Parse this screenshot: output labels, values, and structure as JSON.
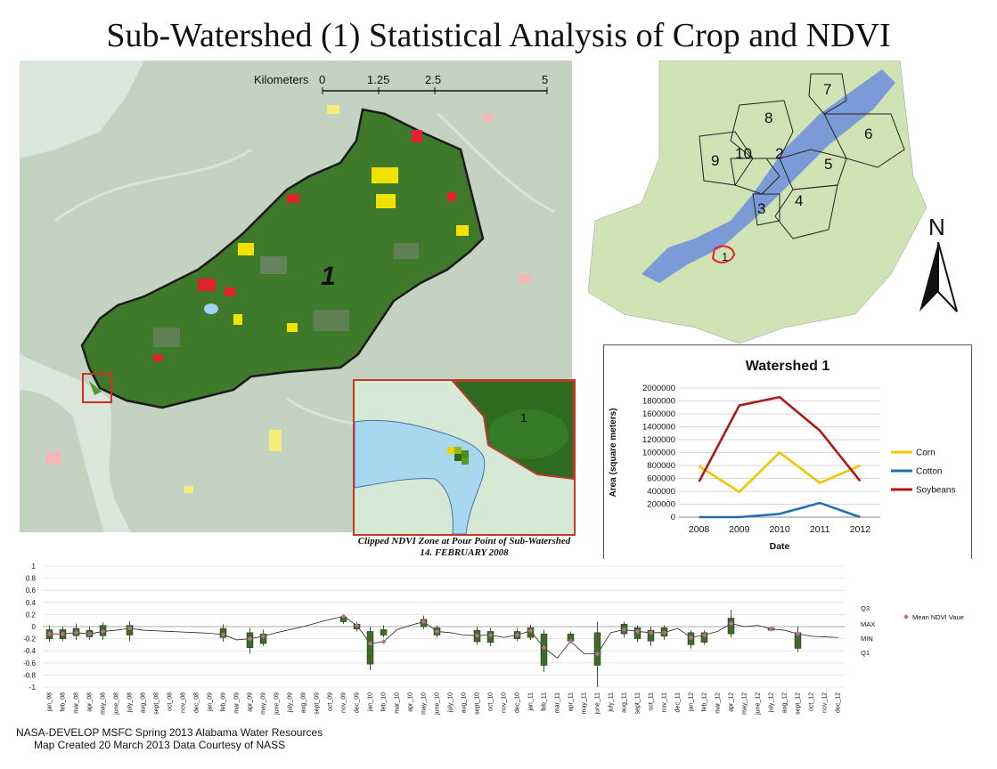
{
  "title": "Sub-Watershed (1) Statistical Analysis of Crop and NDVI",
  "scalebar": {
    "label": "Kilometers",
    "ticks": [
      "0",
      "1.25",
      "2.5",
      "5"
    ]
  },
  "main_map": {
    "watershed_label": "1"
  },
  "inset": {
    "label": "1"
  },
  "caption": {
    "line1": "Clipped NDVI Zone at Pour Point of Sub-Watershed",
    "line2": "14. FEBRUARY 2008"
  },
  "overview": {
    "labels": [
      "7",
      "8",
      "10",
      "2",
      "9",
      "6",
      "5",
      "4",
      "3",
      "1"
    ]
  },
  "north_arrow": {
    "label": "N"
  },
  "colors": {
    "corn": "#f2c500",
    "cotton": "#1f6fb4",
    "soybeans": "#b01818",
    "watershed": "#2f6a1e",
    "water": "#a9cfe6"
  },
  "chart_data": [
    {
      "type": "line",
      "title": "Watershed 1",
      "xlabel": "Date",
      "ylabel": "Area (square meters)",
      "x": [
        "2008",
        "2009",
        "2010",
        "2011",
        "2012"
      ],
      "ylim": [
        0,
        2000000
      ],
      "yticks": [
        "0",
        "200000",
        "400000",
        "600000",
        "800000",
        "1000000",
        "1200000",
        "1400000",
        "1600000",
        "1800000",
        "2000000"
      ],
      "grid": true,
      "legend": "right",
      "series": [
        {
          "name": "Corn",
          "color": "#f2c500",
          "values": [
            790000,
            390000,
            1000000,
            530000,
            800000
          ]
        },
        {
          "name": "Cotton",
          "color": "#1f6fb4",
          "values": [
            0,
            0,
            50000,
            220000,
            0
          ]
        },
        {
          "name": "Soybeans",
          "color": "#b01818",
          "values": [
            550000,
            1730000,
            1860000,
            1340000,
            560000
          ]
        }
      ]
    },
    {
      "type": "box",
      "ylim": [
        -1,
        1
      ],
      "yticks": [
        "1",
        "0.8",
        "0.6",
        "0.4",
        "0.2",
        "0",
        "-0.2",
        "-0.4",
        "-0.6",
        "-0.8",
        "-1"
      ],
      "legend": "right",
      "legend_labels": [
        "Q3",
        "MAX",
        "MIN",
        "Q1"
      ],
      "mean_label": "Mean NDVI Vaue",
      "categories": [
        "jan_08",
        "feb_08",
        "mar_08",
        "apr_08",
        "may_08",
        "june_08",
        "july_08",
        "aug_08",
        "sept_08",
        "oct_08",
        "nov_08",
        "dec_08",
        "jan_09",
        "feb_09",
        "mar_09",
        "apr_09",
        "may_09",
        "june_09",
        "july_09",
        "aug_09",
        "sept_09",
        "oct_09",
        "nov_09",
        "dec_09",
        "jan_10",
        "feb_10",
        "mar_10",
        "apr_10",
        "may_10",
        "june_10",
        "july_10",
        "aug_10",
        "sept_10",
        "oct_10",
        "nov_10",
        "dec_10",
        "jan_11",
        "feb_11",
        "mar_11",
        "apr_11",
        "may_11",
        "june_11",
        "july_11",
        "aug_11",
        "sept_11",
        "oct_11",
        "nov_11",
        "dec_11",
        "jan_12",
        "feb_12",
        "mar_12",
        "apr_12",
        "may_12",
        "june_12",
        "july_12",
        "aug_12",
        "sept_12",
        "oct_12",
        "nov_12",
        "dec_12"
      ],
      "mean": [
        -0.12,
        -0.12,
        -0.1,
        -0.12,
        -0.08,
        -0.06,
        -0.03,
        -0.06,
        -0.07,
        -0.08,
        -0.09,
        -0.1,
        -0.11,
        -0.13,
        -0.22,
        -0.2,
        -0.16,
        -0.1,
        -0.05,
        0.0,
        0.06,
        0.12,
        0.17,
        0.02,
        -0.28,
        -0.25,
        -0.05,
        0.02,
        0.08,
        -0.08,
        -0.1,
        -0.14,
        -0.15,
        -0.14,
        -0.18,
        -0.14,
        -0.07,
        -0.35,
        -0.52,
        -0.24,
        -0.45,
        -0.45,
        -0.1,
        -0.05,
        -0.08,
        -0.1,
        -0.1,
        -0.03,
        -0.18,
        -0.14,
        -0.08,
        0.05,
        0.0,
        0.02,
        -0.04,
        -0.06,
        -0.12,
        -0.16,
        -0.17,
        -0.18
      ],
      "boxes": [
        {
          "i": 0,
          "q1": -0.2,
          "q3": -0.05,
          "min": -0.25,
          "max": 0.02
        },
        {
          "i": 1,
          "q1": -0.2,
          "q3": -0.05,
          "min": -0.24,
          "max": 0.0
        },
        {
          "i": 2,
          "q1": -0.15,
          "q3": -0.03,
          "min": -0.22,
          "max": 0.05
        },
        {
          "i": 3,
          "q1": -0.17,
          "q3": -0.06,
          "min": -0.22,
          "max": 0.0
        },
        {
          "i": 4,
          "q1": -0.15,
          "q3": 0.02,
          "min": -0.22,
          "max": 0.07
        },
        {
          "i": 6,
          "q1": -0.14,
          "q3": 0.02,
          "min": -0.24,
          "max": 0.09
        },
        {
          "i": 13,
          "q1": -0.18,
          "q3": -0.03,
          "min": -0.25,
          "max": 0.04
        },
        {
          "i": 15,
          "q1": -0.35,
          "q3": -0.1,
          "min": -0.45,
          "max": -0.02
        },
        {
          "i": 16,
          "q1": -0.28,
          "q3": -0.12,
          "min": -0.32,
          "max": -0.05
        },
        {
          "i": 22,
          "q1": 0.08,
          "q3": 0.16,
          "min": 0.04,
          "max": 0.2
        },
        {
          "i": 23,
          "q1": -0.04,
          "q3": 0.04,
          "min": -0.08,
          "max": 0.08
        },
        {
          "i": 24,
          "q1": -0.62,
          "q3": -0.08,
          "min": -0.72,
          "max": 0.0
        },
        {
          "i": 25,
          "q1": -0.14,
          "q3": -0.05,
          "min": -0.18,
          "max": 0.02
        },
        {
          "i": 28,
          "q1": 0.0,
          "q3": 0.12,
          "min": -0.04,
          "max": 0.18
        },
        {
          "i": 29,
          "q1": -0.14,
          "q3": -0.02,
          "min": -0.18,
          "max": 0.02
        },
        {
          "i": 32,
          "q1": -0.25,
          "q3": -0.06,
          "min": -0.3,
          "max": 0.0
        },
        {
          "i": 33,
          "q1": -0.26,
          "q3": -0.08,
          "min": -0.32,
          "max": -0.02
        },
        {
          "i": 35,
          "q1": -0.2,
          "q3": -0.08,
          "min": -0.24,
          "max": -0.02
        },
        {
          "i": 36,
          "q1": -0.18,
          "q3": -0.02,
          "min": -0.22,
          "max": 0.03
        },
        {
          "i": 37,
          "q1": -0.64,
          "q3": -0.12,
          "min": -0.75,
          "max": -0.05
        },
        {
          "i": 39,
          "q1": -0.24,
          "q3": -0.12,
          "min": -0.28,
          "max": -0.08
        },
        {
          "i": 41,
          "q1": -0.64,
          "q3": -0.1,
          "min": -1.0,
          "max": 0.08
        },
        {
          "i": 43,
          "q1": -0.12,
          "q3": 0.04,
          "min": -0.18,
          "max": 0.08
        },
        {
          "i": 44,
          "q1": -0.2,
          "q3": -0.02,
          "min": -0.26,
          "max": 0.02
        },
        {
          "i": 45,
          "q1": -0.24,
          "q3": -0.06,
          "min": -0.32,
          "max": 0.0
        },
        {
          "i": 46,
          "q1": -0.16,
          "q3": -0.02,
          "min": -0.22,
          "max": 0.02
        },
        {
          "i": 48,
          "q1": -0.3,
          "q3": -0.1,
          "min": -0.36,
          "max": -0.06
        },
        {
          "i": 49,
          "q1": -0.26,
          "q3": -0.1,
          "min": -0.3,
          "max": -0.06
        },
        {
          "i": 51,
          "q1": -0.12,
          "q3": 0.14,
          "min": -0.18,
          "max": 0.28
        },
        {
          "i": 54,
          "q1": -0.06,
          "q3": -0.02,
          "min": -0.08,
          "max": 0.0
        },
        {
          "i": 56,
          "q1": -0.36,
          "q3": -0.1,
          "min": -0.42,
          "max": 0.0
        }
      ]
    }
  ],
  "footer": {
    "line1": "NASA-DEVELOP MSFC Spring 2013 Alabama Water Resources",
    "line2": "Map Created 20 March 2013 Data Courtesy of NASS"
  }
}
